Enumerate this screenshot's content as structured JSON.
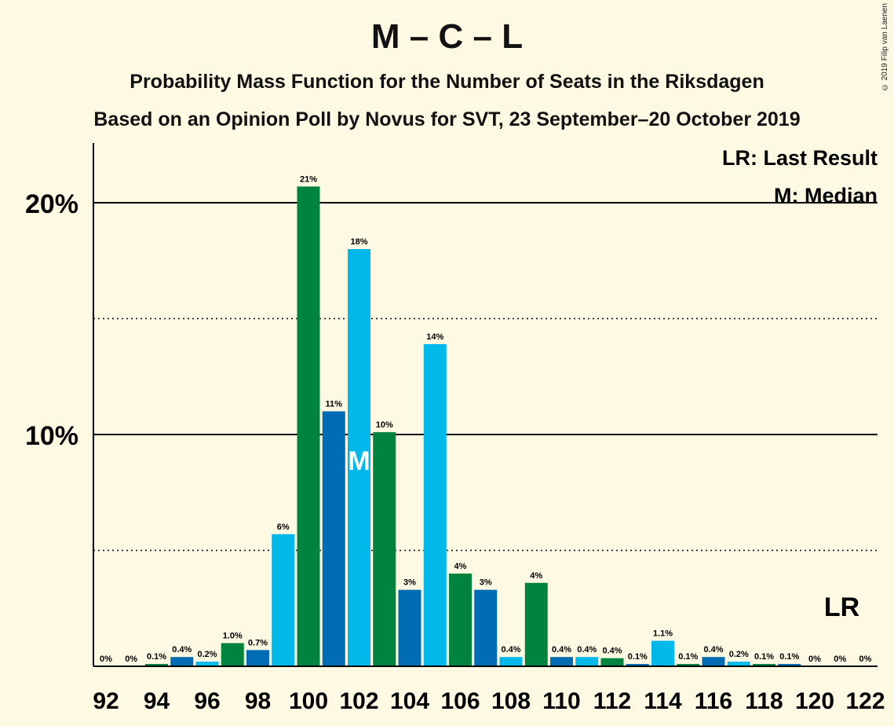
{
  "header": {
    "title": "M – C – L",
    "subtitle1": "Probability Mass Function for the Number of Seats in the Riksdagen",
    "subtitle2": "Based on an Opinion Poll by Novus for SVT, 23 September–20 October 2019",
    "copyright": "© 2019 Filip van Laenen"
  },
  "legend": {
    "last_result": "LR: Last Result",
    "median": "M: Median"
  },
  "chart_data": {
    "type": "bar",
    "title": "M – C – L",
    "x": [
      92,
      93,
      94,
      95,
      96,
      97,
      98,
      99,
      100,
      101,
      102,
      103,
      104,
      105,
      106,
      107,
      108,
      109,
      110,
      111,
      112,
      113,
      114,
      115,
      116,
      117,
      118,
      119,
      120,
      121,
      122
    ],
    "values": [
      0,
      0,
      0.1,
      0.4,
      0.2,
      1.0,
      0.7,
      5.7,
      20.7,
      11.0,
      18.0,
      10.1,
      3.3,
      13.9,
      4.0,
      3.3,
      0.4,
      3.6,
      0.4,
      0.4,
      0.35,
      0.1,
      1.1,
      0.1,
      0.4,
      0.2,
      0.1,
      0.1,
      0,
      0,
      0
    ],
    "labels": [
      "0%",
      "0%",
      "0.1%",
      "0.4%",
      "0.2%",
      "1.0%",
      "0.7%",
      "6%",
      "21%",
      "11%",
      "18%",
      "10%",
      "3%",
      "14%",
      "4%",
      "3%",
      "0.4%",
      "4%",
      "0.4%",
      "0.4%",
      "0.4%",
      "0.1%",
      "1.1%",
      "0.1%",
      "0.4%",
      "0.2%",
      "0.1%",
      "0.1%",
      "0%",
      "0%",
      "0%"
    ],
    "bar_colors": [
      "#00b9eb",
      "#006cb3",
      "#00843d",
      "#006cb3",
      "#00b9eb",
      "#00843d",
      "#006cb3",
      "#00b9eb",
      "#00843d",
      "#006cb3",
      "#00b9eb",
      "#00843d",
      "#006cb3",
      "#00b9eb",
      "#00843d",
      "#006cb3",
      "#00b9eb",
      "#00843d",
      "#006cb3",
      "#00b9eb",
      "#00843d",
      "#006cb3",
      "#00b9eb",
      "#00843d",
      "#006cb3",
      "#00b9eb",
      "#00843d",
      "#006cb3",
      "#00b9eb",
      "#00843d",
      "#006cb3"
    ],
    "xtick_labels": [
      "92",
      "94",
      "96",
      "98",
      "100",
      "102",
      "104",
      "106",
      "108",
      "110",
      "112",
      "114",
      "116",
      "118",
      "120",
      "122"
    ],
    "ytick_labels": [
      "10%",
      "20%"
    ],
    "ylim": [
      0,
      22.5
    ],
    "solid_gridlines": [
      10,
      20
    ],
    "dotted_gridlines": [
      5,
      15
    ],
    "median_seat": 102,
    "median_label": "M",
    "last_result_seat": 122,
    "last_result_label": "LR",
    "legend_position": "top-right"
  }
}
